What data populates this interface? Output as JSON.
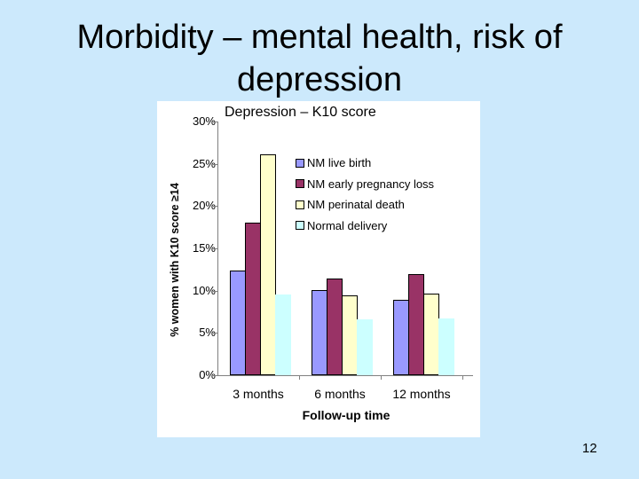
{
  "slide": {
    "title": "Morbidity – mental health, risk of depression",
    "page_number": "12"
  },
  "chart_data": {
    "type": "bar",
    "title": "Depression – K10 score",
    "xlabel": "Follow-up time",
    "ylabel": "% women with K10 score ≥14",
    "ylim": [
      0,
      30
    ],
    "yticks": [
      "0%",
      "5%",
      "10%",
      "15%",
      "20%",
      "25%",
      "30%"
    ],
    "categories": [
      "3 months",
      "6 months",
      "12 months"
    ],
    "series": [
      {
        "name": "NM live birth",
        "color": "#9999ff",
        "values": [
          12.4,
          10.1,
          8.9
        ]
      },
      {
        "name": "NM early pregnancy loss",
        "color": "#993366",
        "values": [
          18.0,
          11.4,
          12.0
        ]
      },
      {
        "name": "NM perinatal death",
        "color": "#ffffcc",
        "values": [
          26.1,
          9.4,
          9.7
        ]
      },
      {
        "name": "Normal delivery",
        "color": "#ccffff",
        "values": [
          9.5,
          6.6,
          6.7
        ]
      }
    ],
    "legend_position": "upper right inside plot",
    "grid": false
  }
}
